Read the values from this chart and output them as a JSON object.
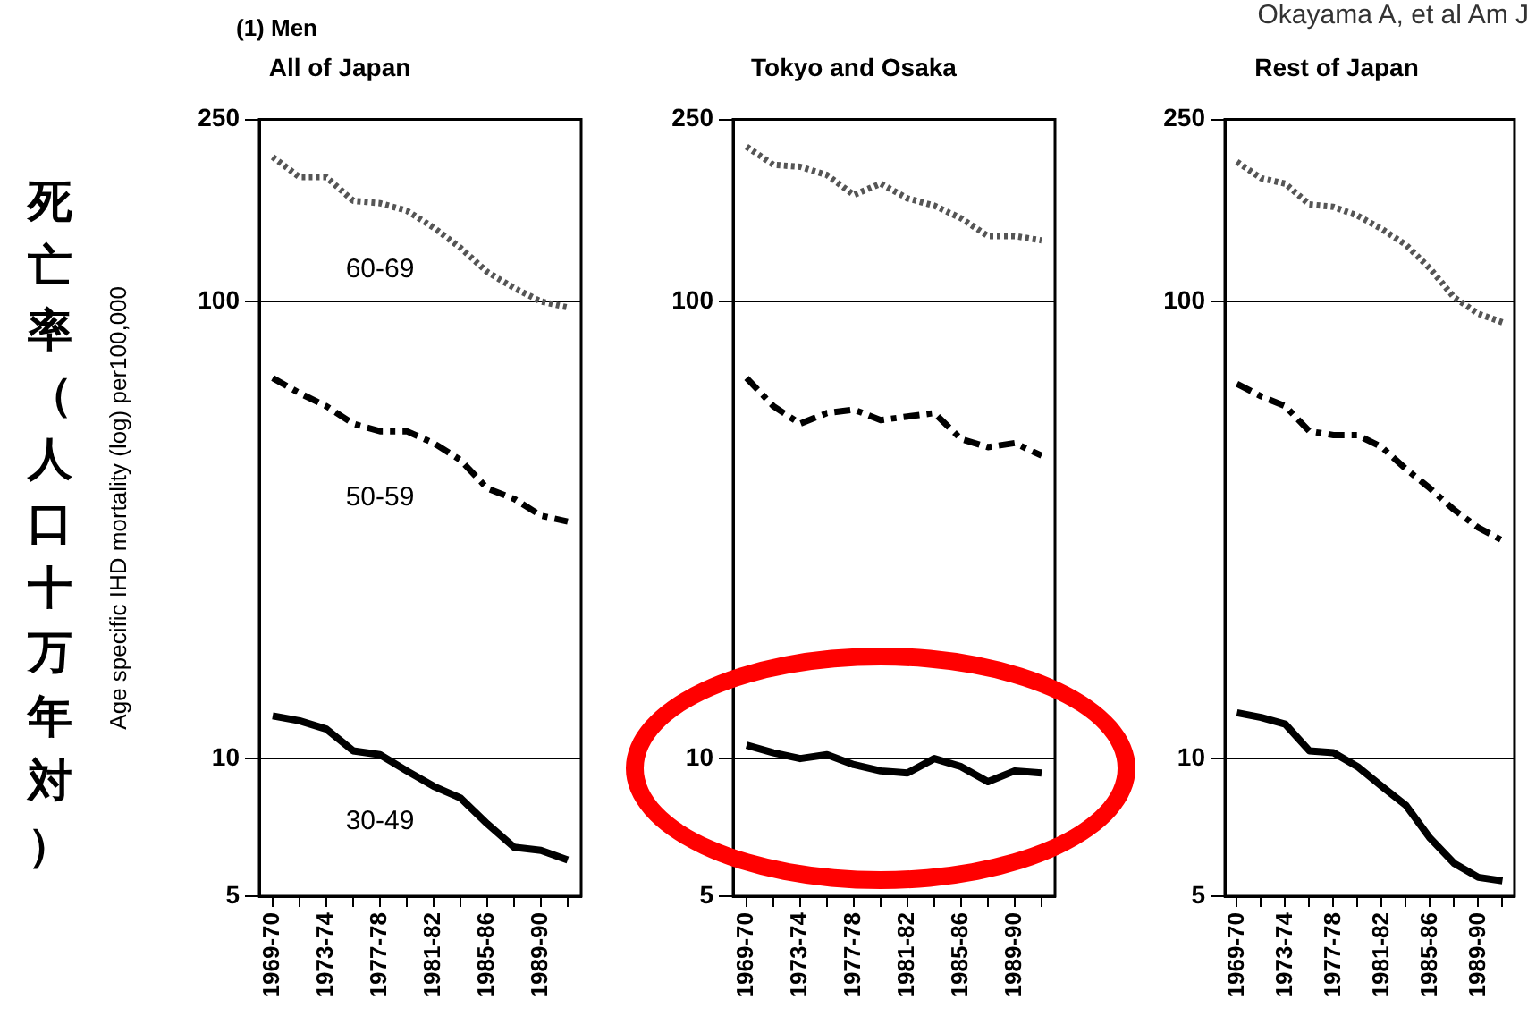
{
  "chart_data": [
    {
      "type": "line",
      "title": "All of Japan",
      "ylabel": "Age specific IHD mortality (log) per100,000",
      "annotations": [
        "(1) Men",
        "死亡率（人口十万年対）"
      ],
      "categories": [
        "1969-70",
        null,
        "1973-74",
        null,
        "1977-78",
        null,
        "1981-82",
        null,
        "1985-86",
        null,
        "1989-90",
        null
      ],
      "series": [
        {
          "name": "60-69",
          "color": "#555555",
          "line_style": "dotted",
          "values": [
            207,
            187,
            187,
            166,
            164,
            158,
            145,
            131,
            116,
            107,
            100,
            97
          ]
        },
        {
          "name": "50-59",
          "color": "#000000",
          "line_style": "dashed",
          "values": [
            68,
            63,
            59,
            54,
            52,
            52,
            49,
            45,
            39,
            37,
            34,
            33
          ]
        },
        {
          "name": "30-49",
          "color": "#000000",
          "line_style": "solid",
          "values": [
            12.4,
            12.1,
            11.6,
            10.4,
            10.2,
            9.4,
            8.7,
            8.2,
            7.2,
            6.4,
            6.3,
            6.0
          ]
        }
      ],
      "ylim": [
        5,
        250
      ],
      "yticks": [
        5,
        10,
        100,
        250
      ],
      "log": true,
      "grid": "y"
    },
    {
      "type": "line",
      "title": "Tokyo and Osaka",
      "categories": [
        "1969-70",
        null,
        "1973-74",
        null,
        "1977-78",
        null,
        "1981-82",
        null,
        "1985-86",
        null,
        "1989-90",
        null
      ],
      "series": [
        {
          "color": "#555555",
          "line_style": "dotted",
          "values": [
            218,
            199,
            197,
            189,
            171,
            181,
            168,
            162,
            152,
            139,
            139,
            136
          ]
        },
        {
          "color": "#000000",
          "line_style": "dashed",
          "values": [
            68,
            59,
            54,
            57,
            58,
            55,
            56,
            57,
            50,
            48,
            49,
            46
          ]
        },
        {
          "color": "#000000",
          "line_style": "solid",
          "values": [
            10.7,
            10.3,
            10.0,
            10.2,
            9.7,
            9.4,
            9.3,
            10.0,
            9.6,
            8.9,
            9.4,
            9.3
          ]
        }
      ],
      "ylim": [
        5,
        250
      ],
      "yticks": [
        5,
        10,
        100,
        250
      ],
      "log": true,
      "grid": "y"
    },
    {
      "type": "line",
      "title": "Rest of Japan",
      "annotations": [
        "Okayama A, et al Am J"
      ],
      "categories": [
        "1969-70",
        null,
        "1973-74",
        null,
        "1977-78",
        null,
        "1981-82",
        null,
        "1985-86",
        null,
        "1989-90",
        null
      ],
      "series": [
        {
          "color": "#555555",
          "line_style": "dotted",
          "values": [
            202,
            186,
            181,
            163,
            161,
            154,
            144,
            133,
            118,
            102,
            94,
            90
          ]
        },
        {
          "color": "#000000",
          "line_style": "dashed",
          "values": [
            66,
            62,
            59,
            52,
            51,
            51,
            48,
            43,
            39,
            35,
            32,
            30
          ]
        },
        {
          "color": "#000000",
          "line_style": "solid",
          "values": [
            12.6,
            12.3,
            11.9,
            10.4,
            10.3,
            9.6,
            8.7,
            7.9,
            6.7,
            5.9,
            5.5,
            5.4
          ]
        }
      ],
      "ylim": [
        5,
        250
      ],
      "yticks": [
        5,
        10,
        100,
        250
      ],
      "log": true,
      "grid": "y"
    }
  ]
}
